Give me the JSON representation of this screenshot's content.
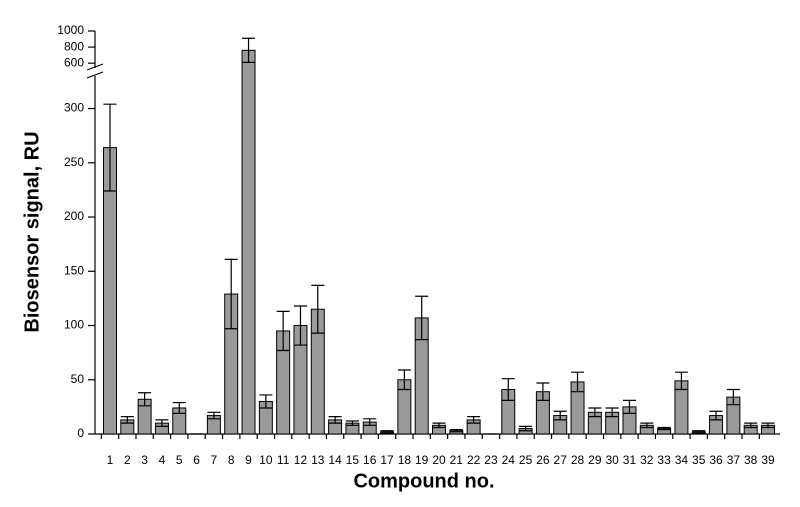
{
  "chart_data": {
    "type": "bar",
    "x_label": "Compound no.",
    "y_label": "Biosensor signal, RU",
    "categories": [
      "1",
      "2",
      "3",
      "4",
      "5",
      "6",
      "7",
      "8",
      "9",
      "10",
      "11",
      "12",
      "13",
      "14",
      "15",
      "16",
      "17",
      "18",
      "19",
      "20",
      "21",
      "22",
      "23",
      "24",
      "25",
      "26",
      "27",
      "28",
      "29",
      "30",
      "31",
      "32",
      "33",
      "34",
      "35",
      "36",
      "37",
      "38",
      "39"
    ],
    "values": [
      264,
      13,
      32,
      10,
      24,
      0,
      17,
      129,
      760,
      30,
      95,
      100,
      115,
      13,
      10,
      11,
      2,
      50,
      107,
      8,
      3,
      13,
      0,
      41,
      5,
      39,
      17,
      48,
      20,
      20,
      25,
      8,
      5,
      49,
      2,
      17,
      34,
      8,
      8
    ],
    "errors": [
      40,
      3,
      6,
      3,
      5,
      0,
      3,
      32,
      150,
      6,
      18,
      18,
      22,
      3,
      2,
      3,
      1,
      9,
      20,
      2,
      1,
      3,
      0,
      10,
      2,
      8,
      4,
      9,
      4,
      4,
      6,
      2,
      1,
      8,
      1,
      4,
      7,
      2,
      2
    ],
    "color": "#9a9a9a",
    "ylim": [
      0,
      1000
    ],
    "yticks": [
      0,
      50,
      100,
      150,
      200,
      250,
      300,
      600,
      800,
      1000
    ],
    "axis_break": [
      330,
      540
    ]
  }
}
